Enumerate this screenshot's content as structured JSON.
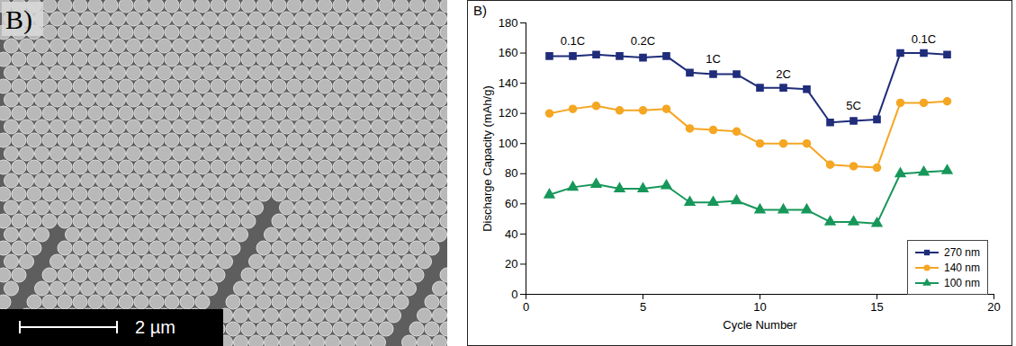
{
  "image_panel": {
    "panel_label": "B)",
    "scale_bar": "2 µm"
  },
  "chart_data": {
    "type": "line",
    "panel_label": "B)",
    "x_label": "Cycle Number",
    "y_label": "Discharge Capacity (mAh/g)",
    "x": [
      1,
      2,
      3,
      4,
      5,
      6,
      7,
      8,
      9,
      10,
      11,
      12,
      13,
      14,
      15,
      16,
      17,
      18
    ],
    "series": [
      {
        "name": "270 nm",
        "color": "#1f2d7a",
        "marker": "square",
        "values": [
          158,
          158,
          159,
          158,
          157,
          158,
          147,
          146,
          146,
          137,
          137,
          136,
          114,
          115,
          116,
          160,
          160,
          159
        ]
      },
      {
        "name": "140 nm",
        "color": "#f5a623",
        "marker": "circle",
        "values": [
          120,
          123,
          125,
          122,
          122,
          123,
          110,
          109,
          108,
          100,
          100,
          100,
          86,
          85,
          84,
          127,
          127,
          128
        ]
      },
      {
        "name": "100 nm",
        "color": "#17975a",
        "marker": "triangle",
        "values": [
          66,
          71,
          73,
          70,
          70,
          72,
          61,
          61,
          62,
          56,
          56,
          56,
          48,
          48,
          47,
          80,
          81,
          82
        ]
      }
    ],
    "annotations": [
      {
        "text": "0.1C",
        "x": 2,
        "y": 168
      },
      {
        "text": "0.2C",
        "x": 5,
        "y": 168
      },
      {
        "text": "1C",
        "x": 8,
        "y": 156
      },
      {
        "text": "2C",
        "x": 11,
        "y": 146
      },
      {
        "text": "5C",
        "x": 14,
        "y": 125
      },
      {
        "text": "0.1C",
        "x": 17,
        "y": 169
      }
    ],
    "xlim": [
      0,
      20
    ],
    "xticks": [
      0,
      5,
      10,
      15,
      20
    ],
    "ylim": [
      0,
      180
    ],
    "yticks": [
      0,
      20,
      40,
      60,
      80,
      100,
      120,
      140,
      160,
      180
    ],
    "grid": false,
    "legend": "lower right"
  }
}
